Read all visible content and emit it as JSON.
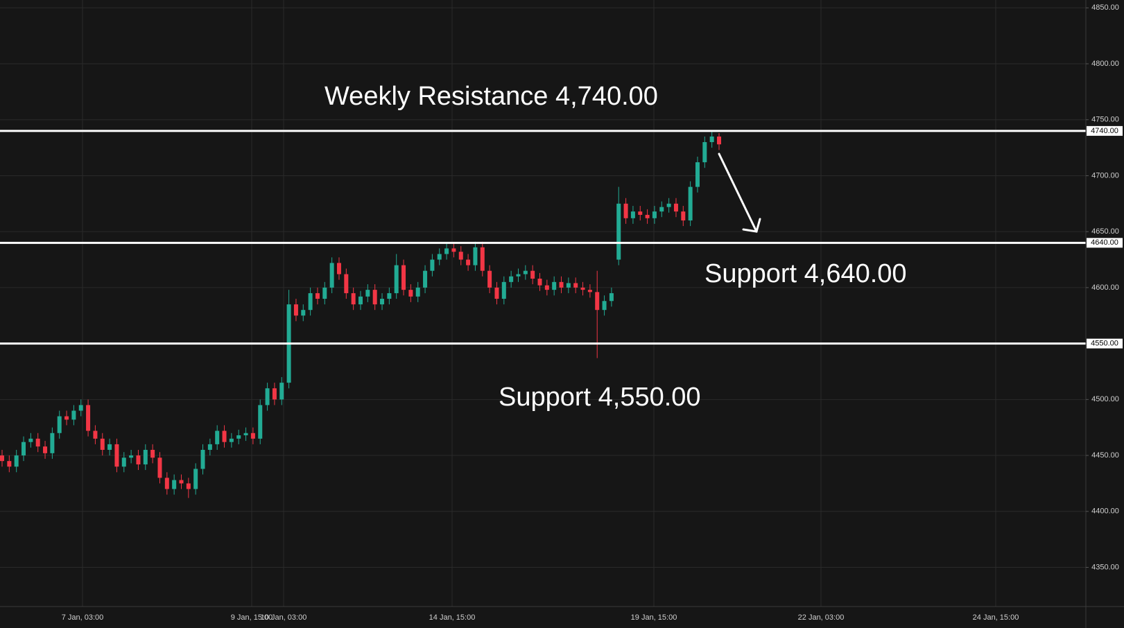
{
  "chart_data": {
    "type": "candlestick",
    "up_color": "#22ab94",
    "down_color": "#f23645",
    "ylim": [
      4315,
      4857
    ],
    "yticks": [
      {
        "value": 4350,
        "label": "4350.00"
      },
      {
        "value": 4400,
        "label": "4400.00"
      },
      {
        "value": 4450,
        "label": "4450.00"
      },
      {
        "value": 4500,
        "label": "4500.00"
      },
      {
        "value": 4550,
        "label": "4550.00"
      },
      {
        "value": 4600,
        "label": "4600.00"
      },
      {
        "value": 4650,
        "label": "4650.00"
      },
      {
        "value": 4700,
        "label": "4700.00"
      },
      {
        "value": 4750,
        "label": "4750.00"
      },
      {
        "value": 4800,
        "label": "4800.00"
      },
      {
        "value": 4850,
        "label": "4850.00"
      }
    ],
    "xtick_labels": [
      "7 Jan, 03:00",
      "9 Jan, 15:00",
      "10 Jan, 03:00",
      "14 Jan, 15:00",
      "19 Jan, 15:00",
      "22 Jan, 03:00",
      "24 Jan, 15:00"
    ],
    "grid": true,
    "levels": [
      {
        "value": 4740,
        "label": "4740.00"
      },
      {
        "value": 4640,
        "label": "4640.00"
      },
      {
        "value": 4550,
        "label": "4550.00"
      }
    ],
    "annotations": [
      "Weekly Resistance 4,740.00",
      "Support 4,640.00",
      "Support 4,550.00"
    ],
    "open": [
      4450,
      4445,
      4440,
      4450,
      4462,
      4465,
      4458,
      4452,
      4470,
      4485,
      4482,
      4490,
      4495,
      4472,
      4465,
      4455,
      4460,
      4440,
      4448,
      4450,
      4442,
      4455,
      4448,
      4430,
      4420,
      4428,
      4425,
      4420,
      4438,
      4455,
      4460,
      4472,
      4462,
      4465,
      4468,
      4470,
      4465,
      4495,
      4510,
      4500,
      4515,
      4585,
      4575,
      4580,
      4595,
      4590,
      4600,
      4622,
      4612,
      4595,
      4585,
      4592,
      4598,
      4585,
      4590,
      4595,
      4620,
      4598,
      4592,
      4600,
      4615,
      4625,
      4630,
      4635,
      4632,
      4625,
      4620,
      4636,
      4615,
      4600,
      4590,
      4605,
      4610,
      4612,
      4615,
      4608,
      4602,
      4598,
      4605,
      4600,
      4604,
      4600,
      4598,
      4596,
      4580,
      4588,
      4625,
      4675,
      4662,
      4668,
      4665,
      4662,
      4668,
      4672,
      4675,
      4668,
      4660,
      4690,
      4712,
      4730,
      4735
    ],
    "high": [
      4455,
      4450,
      4455,
      4467,
      4470,
      4470,
      4463,
      4475,
      4490,
      4490,
      4495,
      4500,
      4500,
      4477,
      4470,
      4465,
      4465,
      4453,
      4455,
      4455,
      4460,
      4460,
      4453,
      4435,
      4433,
      4433,
      4430,
      4443,
      4460,
      4465,
      4477,
      4477,
      4470,
      4473,
      4475,
      4475,
      4500,
      4515,
      4515,
      4520,
      4598,
      4590,
      4585,
      4600,
      4600,
      4605,
      4627,
      4627,
      4617,
      4600,
      4597,
      4603,
      4603,
      4595,
      4600,
      4630,
      4625,
      4603,
      4605,
      4620,
      4630,
      4635,
      4640,
      4640,
      4637,
      4630,
      4641,
      4641,
      4620,
      4605,
      4610,
      4615,
      4617,
      4620,
      4620,
      4613,
      4607,
      4610,
      4610,
      4609,
      4609,
      4605,
      4603,
      4615,
      4593,
      4600,
      4690,
      4680,
      4673,
      4673,
      4670,
      4673,
      4677,
      4680,
      4680,
      4673,
      4695,
      4717,
      4735,
      4740,
      4738
    ],
    "low": [
      4440,
      4435,
      4435,
      4445,
      4457,
      4453,
      4447,
      4447,
      4465,
      4477,
      4477,
      4485,
      4467,
      4460,
      4450,
      4450,
      4435,
      4435,
      4443,
      4437,
      4437,
      4443,
      4425,
      4415,
      4415,
      4420,
      4412,
      4415,
      4433,
      4450,
      4455,
      4457,
      4457,
      4460,
      4463,
      4460,
      4460,
      4490,
      4495,
      4495,
      4510,
      4570,
      4570,
      4575,
      4585,
      4585,
      4595,
      4607,
      4590,
      4580,
      4580,
      4587,
      4580,
      4580,
      4585,
      4590,
      4593,
      4587,
      4587,
      4595,
      4610,
      4620,
      4625,
      4627,
      4620,
      4615,
      4615,
      4610,
      4595,
      4585,
      4585,
      4600,
      4605,
      4607,
      4603,
      4597,
      4593,
      4593,
      4595,
      4595,
      4595,
      4593,
      4591,
      4537,
      4575,
      4583,
      4620,
      4657,
      4657,
      4660,
      4657,
      4657,
      4663,
      4667,
      4663,
      4655,
      4655,
      4685,
      4707,
      4725,
      4723
    ],
    "close": [
      4445,
      4440,
      4450,
      4462,
      4465,
      4458,
      4452,
      4470,
      4485,
      4482,
      4490,
      4495,
      4472,
      4465,
      4455,
      4460,
      4440,
      4448,
      4450,
      4442,
      4455,
      4448,
      4430,
      4420,
      4428,
      4425,
      4420,
      4438,
      4455,
      4460,
      4472,
      4462,
      4465,
      4468,
      4470,
      4465,
      4495,
      4510,
      4500,
      4515,
      4585,
      4575,
      4580,
      4595,
      4590,
      4600,
      4622,
      4612,
      4595,
      4585,
      4592,
      4598,
      4585,
      4590,
      4595,
      4620,
      4598,
      4592,
      4600,
      4615,
      4625,
      4630,
      4635,
      4632,
      4625,
      4620,
      4636,
      4615,
      4600,
      4590,
      4605,
      4610,
      4612,
      4615,
      4608,
      4602,
      4598,
      4605,
      4600,
      4604,
      4600,
      4598,
      4596,
      4580,
      4588,
      4595,
      4675,
      4662,
      4668,
      4665,
      4662,
      4668,
      4672,
      4675,
      4668,
      4660,
      4690,
      4712,
      4730,
      4735,
      4728
    ]
  }
}
